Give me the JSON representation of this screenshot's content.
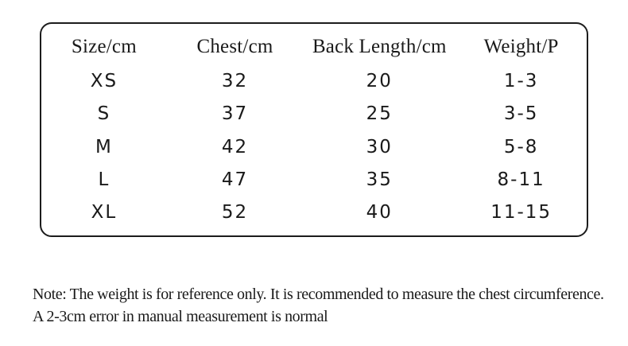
{
  "chart_data": {
    "type": "table",
    "columns": [
      "Size/cm",
      "Chest/cm",
      "Back Length/cm",
      "Weight/P"
    ],
    "rows": [
      [
        "XS",
        "32",
        "20",
        "1-3"
      ],
      [
        "S",
        "37",
        "25",
        "3-5"
      ],
      [
        "M",
        "42",
        "30",
        "5-8"
      ],
      [
        "L",
        "47",
        "35",
        "8-11"
      ],
      [
        "XL",
        "52",
        "40",
        "11-15"
      ]
    ]
  },
  "note": {
    "line1": "Note: The weight is for reference only. It is recommended to measure the chest circumference.",
    "line2": "A 2-3cm error in manual measurement is normal"
  },
  "colors": {
    "text": "#1a1a1a",
    "border": "#1c1c1c",
    "background": "#ffffff"
  }
}
